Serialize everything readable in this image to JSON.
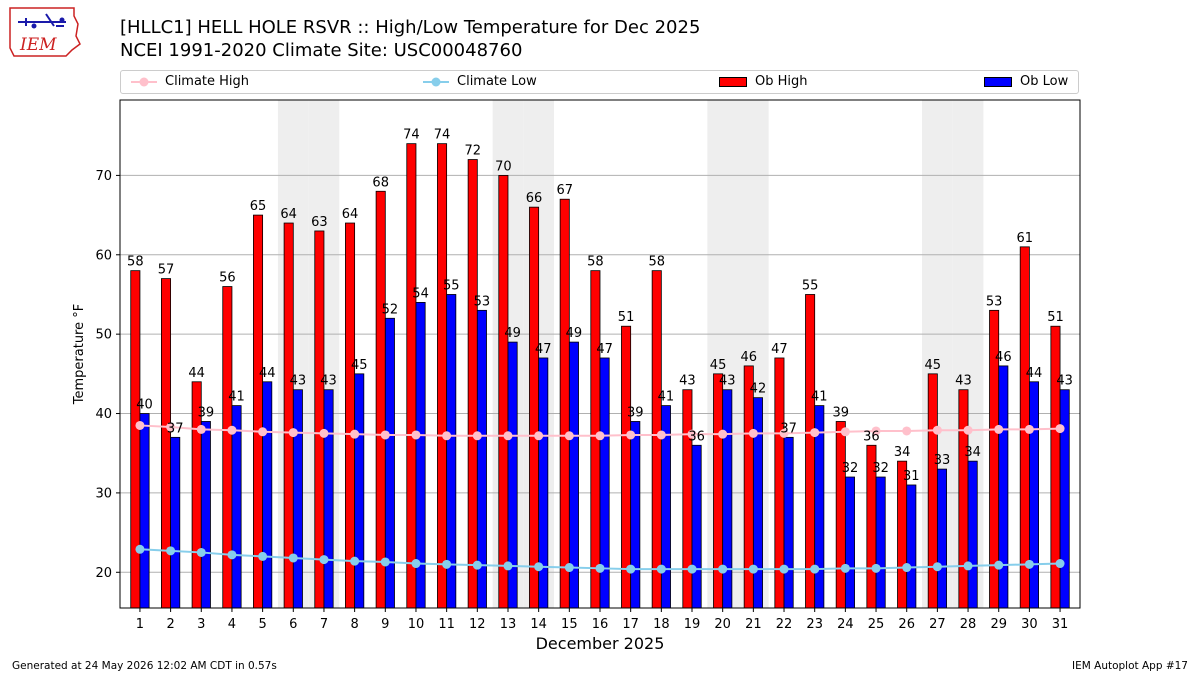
{
  "header": {
    "title_line1": "[HLLC1] HELL HOLE RSVR :: High/Low Temperature for Dec 2025",
    "title_line2": "NCEI 1991-2020 Climate Site: USC00048760",
    "logo_text": "IEM"
  },
  "legend": {
    "items": [
      {
        "label": "Climate High",
        "color": "#ffc0cb",
        "kind": "line-marker"
      },
      {
        "label": "Climate Low",
        "color": "#87ceeb",
        "kind": "line-marker"
      },
      {
        "label": "Ob High",
        "color": "#ff0000",
        "kind": "bar"
      },
      {
        "label": "Ob Low",
        "color": "#0000ff",
        "kind": "bar"
      }
    ]
  },
  "chart_data": {
    "type": "bar",
    "xlabel": "December 2025",
    "ylabel": "Temperature °F",
    "ylim": [
      15.5,
      79.5
    ],
    "yticks": [
      20,
      30,
      40,
      50,
      60,
      70
    ],
    "grid": "horizontal",
    "legend_position": "top",
    "weekend_shading_days": [
      6,
      7,
      13,
      14,
      20,
      21,
      27,
      28
    ],
    "weekend_shade_color": "#eeeeee",
    "categories": [
      "1",
      "2",
      "3",
      "4",
      "5",
      "6",
      "7",
      "8",
      "9",
      "10",
      "11",
      "12",
      "13",
      "14",
      "15",
      "16",
      "17",
      "18",
      "19",
      "20",
      "21",
      "22",
      "23",
      "24",
      "25",
      "26",
      "27",
      "28",
      "29",
      "30",
      "31"
    ],
    "series": [
      {
        "name": "Ob High",
        "color": "#ff0000",
        "kind": "bar",
        "values": [
          58,
          57,
          44,
          56,
          65,
          64,
          63,
          64,
          68,
          74,
          74,
          72,
          70,
          66,
          67,
          58,
          51,
          58,
          43,
          45,
          46,
          47,
          55,
          39,
          36,
          34,
          45,
          43,
          53,
          61,
          51
        ]
      },
      {
        "name": "Ob Low",
        "color": "#0000ff",
        "kind": "bar",
        "values": [
          40,
          37,
          39,
          41,
          44,
          43,
          43,
          45,
          52,
          54,
          55,
          53,
          49,
          47,
          49,
          47,
          39,
          41,
          36,
          43,
          42,
          37,
          41,
          32,
          32,
          31,
          33,
          34,
          46,
          44,
          43
        ]
      },
      {
        "name": "Climate High",
        "color": "#ffc0cb",
        "kind": "line",
        "values": [
          38.5,
          38.3,
          38.0,
          37.9,
          37.7,
          37.6,
          37.5,
          37.4,
          37.3,
          37.3,
          37.2,
          37.2,
          37.2,
          37.2,
          37.2,
          37.2,
          37.3,
          37.3,
          37.4,
          37.4,
          37.5,
          37.5,
          37.6,
          37.7,
          37.8,
          37.8,
          37.9,
          37.9,
          38.0,
          38.0,
          38.1
        ]
      },
      {
        "name": "Climate Low",
        "color": "#87ceeb",
        "kind": "line",
        "values": [
          22.9,
          22.7,
          22.5,
          22.2,
          22.0,
          21.8,
          21.6,
          21.4,
          21.3,
          21.1,
          21.0,
          20.9,
          20.8,
          20.7,
          20.6,
          20.5,
          20.4,
          20.4,
          20.4,
          20.4,
          20.4,
          20.4,
          20.4,
          20.5,
          20.5,
          20.6,
          20.7,
          20.8,
          20.9,
          21.0,
          21.1
        ]
      }
    ]
  },
  "footer": {
    "left": "Generated at 24 May 2026 12:02 AM CDT in 0.57s",
    "right": "IEM Autoplot App #17"
  }
}
